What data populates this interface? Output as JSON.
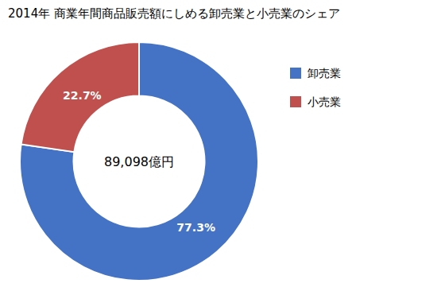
{
  "chart_data": {
    "type": "donut",
    "title": "2014年 商業年間商品販売額にしめる卸売業と小売業のシェア",
    "categories": [
      "卸売業",
      "小売業"
    ],
    "values": [
      77.3,
      22.7
    ],
    "value_labels": [
      "77.3%",
      "22.7%"
    ],
    "colors": [
      "#4472C4",
      "#C0504D"
    ],
    "annotations": [
      "89,098億円"
    ],
    "data_labels": true,
    "legend": "right"
  }
}
